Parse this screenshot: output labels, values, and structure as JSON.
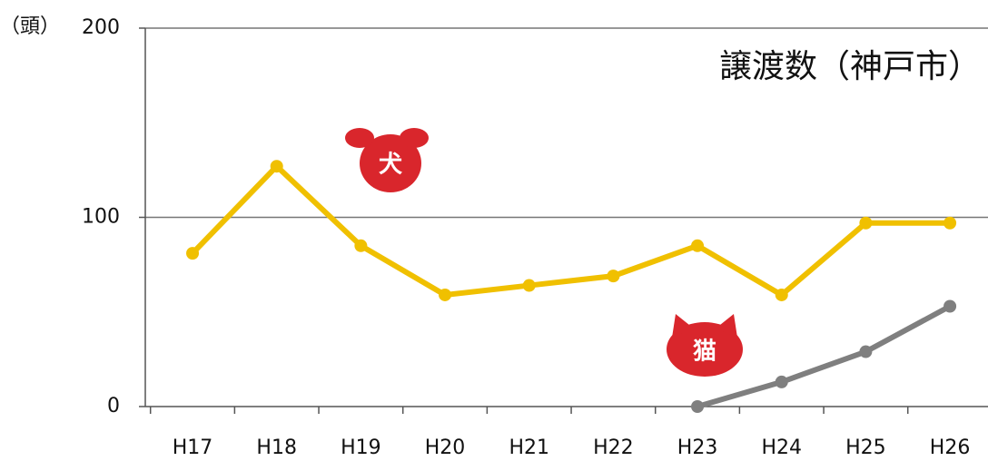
{
  "chart_data": {
    "type": "line",
    "title": "譲渡数（神戸市）",
    "y_label": "（頭）",
    "categories": [
      "H17",
      "H18",
      "H19",
      "H20",
      "H21",
      "H22",
      "H23",
      "H24",
      "H25",
      "H26"
    ],
    "series": [
      {
        "name": "犬",
        "color": "#f0c000",
        "values": [
          81,
          127,
          85,
          59,
          64,
          69,
          85,
          59,
          97,
          97
        ]
      },
      {
        "name": "猫",
        "color": "#7f7f7f",
        "values": [
          null,
          null,
          null,
          null,
          null,
          null,
          0,
          13,
          29,
          53
        ]
      }
    ],
    "ylim": [
      0,
      200
    ],
    "yticks": [
      0,
      100,
      200
    ],
    "grid": true
  }
}
